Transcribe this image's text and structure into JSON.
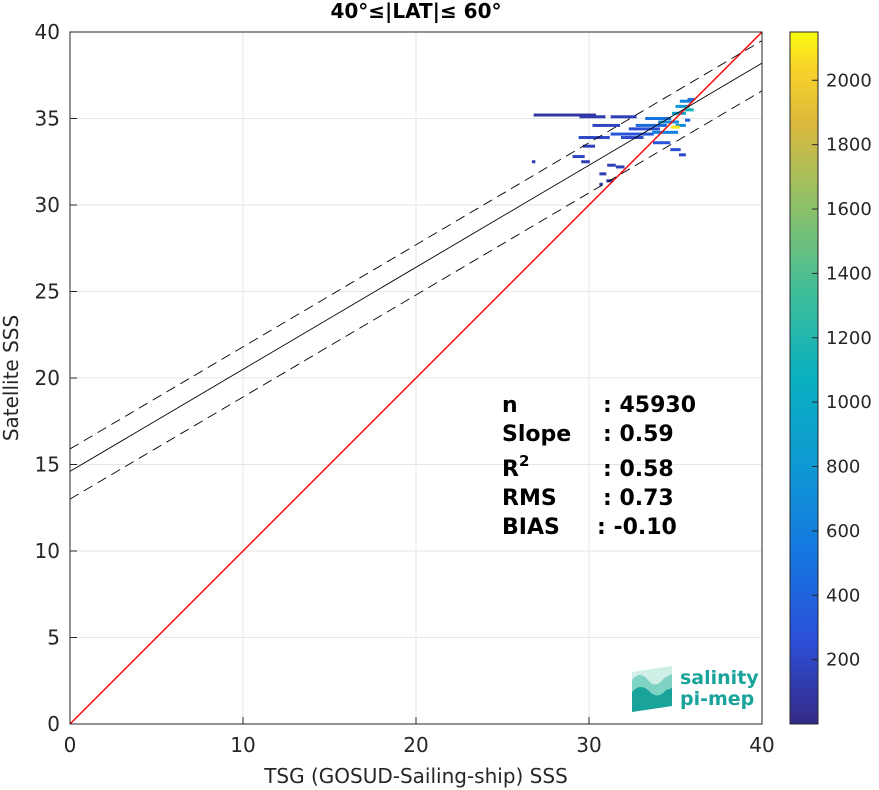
{
  "chart_data": {
    "type": "scatter",
    "title": "40°≤|LAT|≤ 60°",
    "xlabel": "TSG (GOSUD-Sailing-ship) SSS",
    "ylabel": "Satellite SSS",
    "xlim": [
      0,
      40
    ],
    "ylim": [
      0,
      40
    ],
    "xticks": [
      "0",
      "10",
      "20",
      "30",
      "40"
    ],
    "yticks": [
      "0",
      "5",
      "10",
      "15",
      "20",
      "25",
      "30",
      "35",
      "40"
    ],
    "grid": true,
    "colorbar": {
      "range": [
        0,
        2150
      ],
      "ticks": [
        "200",
        "400",
        "600",
        "800",
        "1000",
        "1200",
        "1400",
        "1600",
        "1800",
        "2000"
      ],
      "colormap": "parula"
    },
    "lines": [
      {
        "type": "identity",
        "color": "#ff0000",
        "x": [
          0,
          40
        ],
        "y": [
          0,
          40
        ]
      },
      {
        "type": "regression",
        "color": "#000000",
        "slope": 0.59,
        "intercept": 14.6
      },
      {
        "type": "regression-upper",
        "color": "#000000",
        "dashed": true,
        "slope": 0.59,
        "intercept": 15.9
      },
      {
        "type": "regression-lower",
        "color": "#000000",
        "dashed": true,
        "slope": 0.59,
        "intercept": 13.0
      }
    ],
    "density_points": [
      {
        "x": 28.6,
        "y": 35.2,
        "w": 3.6,
        "v": 80
      },
      {
        "x": 30.2,
        "y": 35.1,
        "w": 1.5,
        "v": 120
      },
      {
        "x": 32.0,
        "y": 35.1,
        "w": 1.5,
        "v": 150
      },
      {
        "x": 31.0,
        "y": 34.6,
        "w": 1.6,
        "v": 180
      },
      {
        "x": 33.2,
        "y": 34.4,
        "w": 1.8,
        "v": 250
      },
      {
        "x": 32.5,
        "y": 34.1,
        "w": 2.5,
        "v": 300
      },
      {
        "x": 30.3,
        "y": 33.9,
        "w": 1.8,
        "v": 200
      },
      {
        "x": 32.5,
        "y": 33.9,
        "w": 1.3,
        "v": 220
      },
      {
        "x": 30.0,
        "y": 33.4,
        "w": 0.7,
        "v": 150
      },
      {
        "x": 29.4,
        "y": 32.8,
        "w": 0.7,
        "v": 180
      },
      {
        "x": 29.8,
        "y": 32.5,
        "w": 0.5,
        "v": 140
      },
      {
        "x": 26.8,
        "y": 32.5,
        "w": 0.2,
        "v": 120
      },
      {
        "x": 31.3,
        "y": 32.3,
        "w": 0.5,
        "v": 160
      },
      {
        "x": 31.8,
        "y": 32.2,
        "w": 0.5,
        "v": 160
      },
      {
        "x": 30.8,
        "y": 31.8,
        "w": 0.4,
        "v": 150
      },
      {
        "x": 31.2,
        "y": 31.4,
        "w": 0.4,
        "v": 150
      },
      {
        "x": 30.7,
        "y": 31.2,
        "w": 0.2,
        "v": 130
      },
      {
        "x": 34.0,
        "y": 35.0,
        "w": 1.5,
        "v": 500
      },
      {
        "x": 34.6,
        "y": 34.8,
        "w": 1.2,
        "v": 700
      },
      {
        "x": 33.6,
        "y": 34.6,
        "w": 1.8,
        "v": 450
      },
      {
        "x": 34.4,
        "y": 34.2,
        "w": 1.5,
        "v": 600
      },
      {
        "x": 34.2,
        "y": 33.6,
        "w": 1.0,
        "v": 300
      },
      {
        "x": 35.0,
        "y": 33.2,
        "w": 0.6,
        "v": 250
      },
      {
        "x": 35.4,
        "y": 32.9,
        "w": 0.4,
        "v": 200
      },
      {
        "x": 35.2,
        "y": 35.3,
        "w": 0.8,
        "v": 900
      },
      {
        "x": 35.4,
        "y": 35.7,
        "w": 0.8,
        "v": 800
      },
      {
        "x": 35.6,
        "y": 36.0,
        "w": 0.7,
        "v": 600
      },
      {
        "x": 35.3,
        "y": 34.6,
        "w": 0.6,
        "v": 700
      },
      {
        "x": 35.8,
        "y": 35.5,
        "w": 0.5,
        "v": 1100
      },
      {
        "x": 35.9,
        "y": 36.1,
        "w": 0.4,
        "v": 500
      },
      {
        "x": 35.7,
        "y": 34.9,
        "w": 0.3,
        "v": 400
      },
      {
        "x": 35.0,
        "y": 34.5,
        "w": 0.5,
        "v": 2100
      }
    ]
  },
  "stats": {
    "n_label": "n",
    "n_value": ": 45930",
    "slope_label": "Slope",
    "slope_value": ": 0.59",
    "r2_label": "R",
    "r2_sup": "2",
    "r2_value": ": 0.58",
    "rms_label": "RMS",
    "rms_value": ": 0.73",
    "bias_label": "BIAS",
    "bias_value": ": -0.10"
  },
  "logo": {
    "line1": "salinity",
    "line2": "pi-mep",
    "colors": [
      "#1aa39a",
      "#7fd3c4",
      "#cfeee6"
    ]
  }
}
